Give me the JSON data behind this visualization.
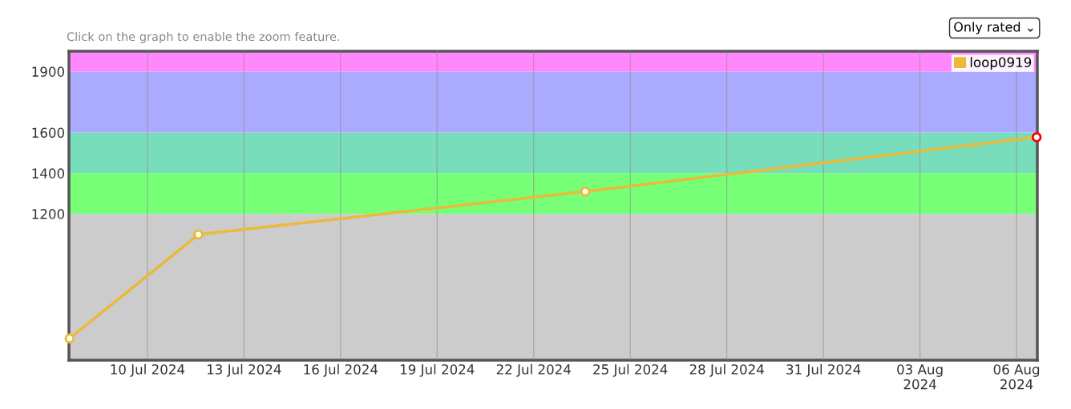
{
  "chart_data": {
    "type": "line",
    "annotations": [
      "Click on the graph to enable the zoom feature.",
      "Only rated ⌄"
    ],
    "x": [
      "2024-07-07T14:00",
      "2024-07-11T14:00",
      "2024-07-23T14:30",
      "2024-08-06T15:00"
    ],
    "series": [
      {
        "name": "loop0919",
        "color": "#ecb939",
        "values": [
          587,
          1098,
          1310,
          1577
        ],
        "colors": [
          "#ecb939",
          "#ecb939",
          "#ecb939",
          "#ff0000"
        ]
      }
    ],
    "xlim": [
      "2024-07-07T13:30",
      "2024-08-06T15:30"
    ],
    "xticks": [
      {
        "value": "2024-07-10",
        "label": "10 Jul 2024"
      },
      {
        "value": "2024-07-13",
        "label": "13 Jul 2024"
      },
      {
        "value": "2024-07-16",
        "label": "16 Jul 2024"
      },
      {
        "value": "2024-07-19",
        "label": "19 Jul 2024"
      },
      {
        "value": "2024-07-22",
        "label": "22 Jul 2024"
      },
      {
        "value": "2024-07-25",
        "label": "25 Jul 2024"
      },
      {
        "value": "2024-07-28",
        "label": "28 Jul 2024"
      },
      {
        "value": "2024-07-31",
        "label": "31 Jul 2024"
      },
      {
        "value": "2024-08-03",
        "label": "03 Aug\n2024"
      },
      {
        "value": "2024-08-06",
        "label": "06 Aug\n2024"
      }
    ],
    "ylim": [
      480,
      2000
    ],
    "yticks": [
      1200,
      1400,
      1600,
      1900
    ],
    "bands": [
      {
        "axis": "y",
        "from": 480,
        "to": 1200,
        "color": "#cccccc"
      },
      {
        "axis": "y",
        "from": 1200,
        "to": 1400,
        "color": "#77ff77"
      },
      {
        "axis": "y",
        "from": 1400,
        "to": 1600,
        "color": "#77ddbb"
      },
      {
        "axis": "y",
        "from": 1600,
        "to": 1900,
        "color": "#aaaaff"
      },
      {
        "axis": "y",
        "from": 1900,
        "to": 2000,
        "color": "#ff88ff"
      }
    ],
    "grid": "x",
    "legend": "top right",
    "marker": "circle",
    "line_style": "solid"
  }
}
